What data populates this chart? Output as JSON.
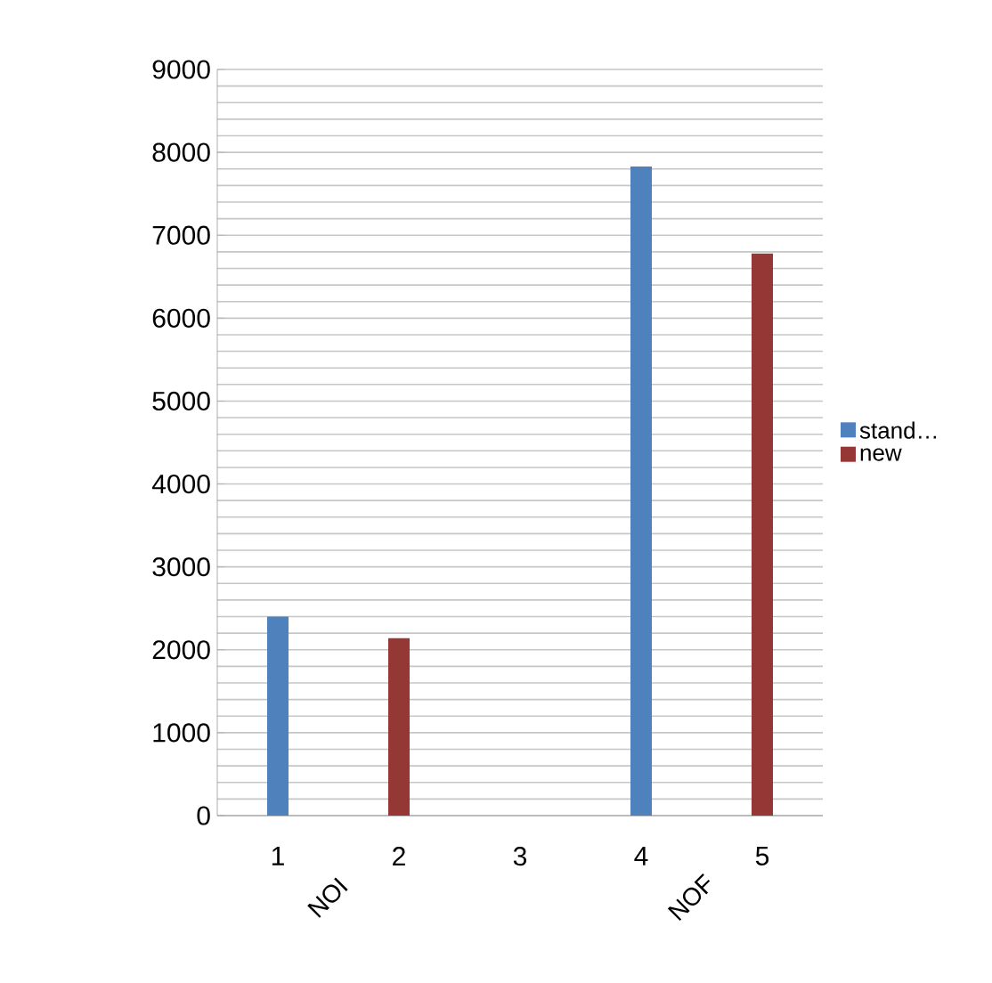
{
  "chart_data": {
    "type": "bar",
    "categories": [
      "1",
      "2",
      "3",
      "4",
      "5"
    ],
    "series": [
      {
        "name": "stand…",
        "color": "#4f81bd",
        "values": [
          2400,
          null,
          null,
          7830,
          null
        ]
      },
      {
        "name": "new",
        "color": "#953735",
        "values": [
          null,
          2140,
          null,
          null,
          6780
        ]
      }
    ],
    "ylim": [
      0,
      9000
    ],
    "yticks": [
      0,
      1000,
      2000,
      3000,
      4000,
      5000,
      6000,
      7000,
      8000,
      9000
    ],
    "grid": "y",
    "legend": "right",
    "annotations": [
      "NOI",
      "NOF"
    ]
  }
}
